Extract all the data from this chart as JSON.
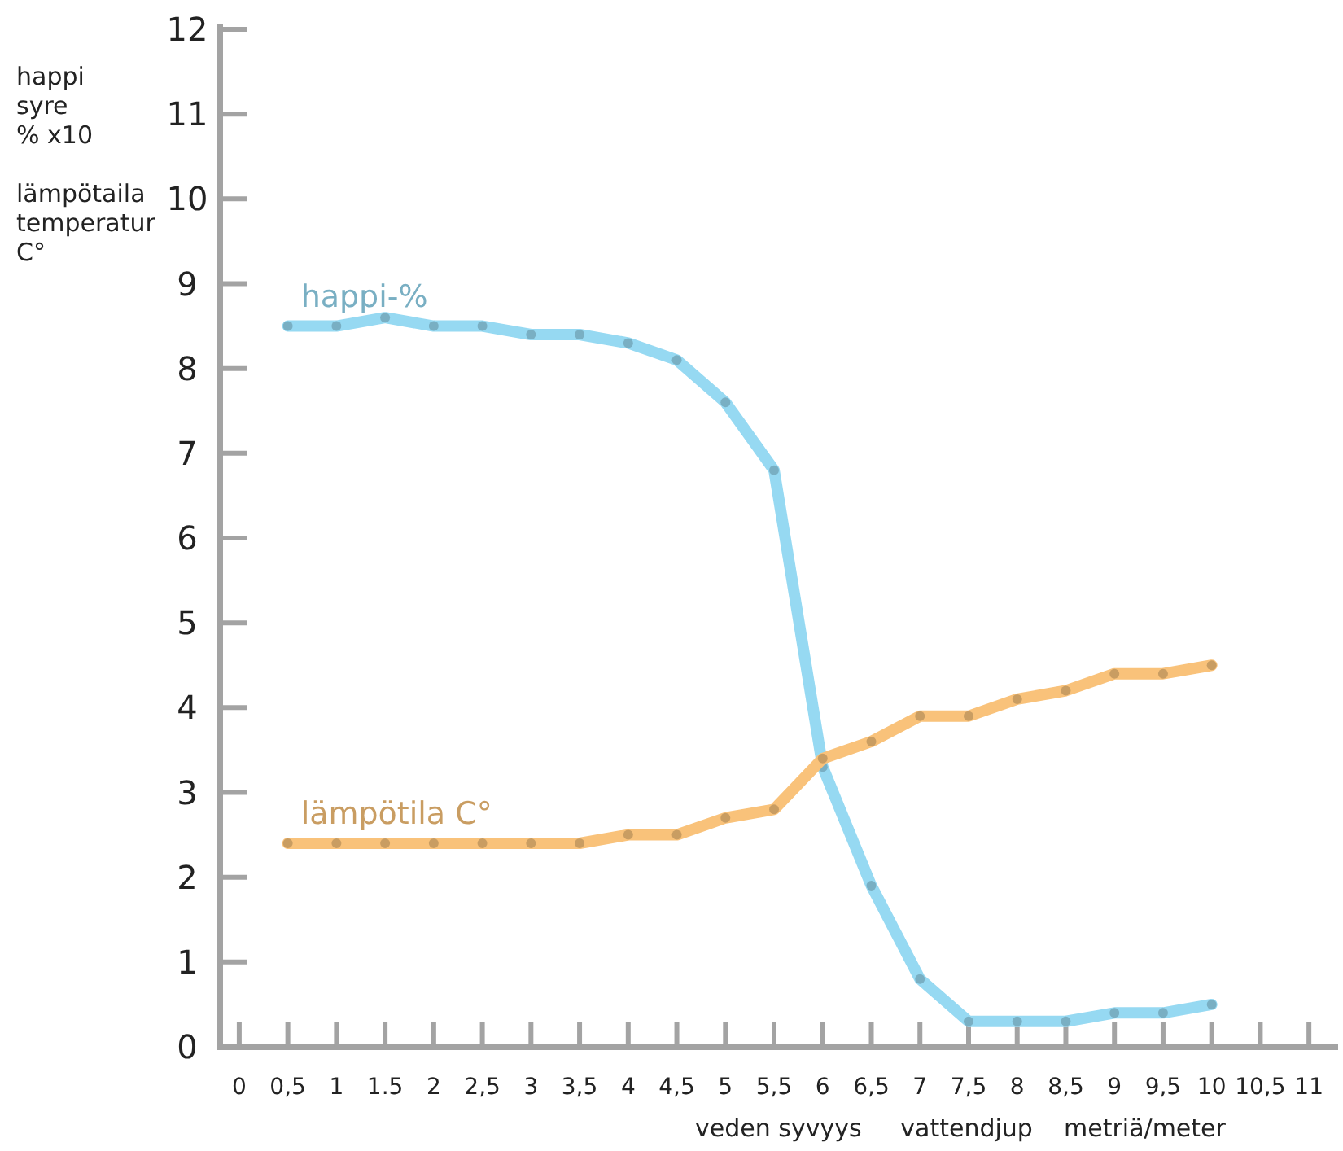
{
  "chart_data": {
    "type": "line",
    "ylabel": "happi\nsyre\n% x10\n\nlämpötaila\ntemperatur\nC°",
    "xlabel": "veden syvyys     vattendjup    metriä/meter",
    "x": [
      0.5,
      1,
      1.5,
      2,
      2.5,
      3,
      3.5,
      4,
      4.5,
      5,
      5.5,
      6,
      6.5,
      7,
      7.5,
      8,
      8.5,
      9,
      9.5,
      10
    ],
    "series": [
      {
        "name": "happi-%",
        "color": "#96d9f2",
        "values": [
          8.5,
          8.5,
          8.6,
          8.5,
          8.5,
          8.4,
          8.4,
          8.3,
          8.1,
          7.6,
          6.8,
          3.3,
          1.9,
          0.8,
          0.3,
          0.3,
          0.3,
          0.4,
          0.4,
          0.5
        ]
      },
      {
        "name": "lämpötila C°",
        "color": "#f9c27a",
        "values": [
          2.4,
          2.4,
          2.4,
          2.4,
          2.4,
          2.4,
          2.4,
          2.5,
          2.5,
          2.7,
          2.8,
          3.4,
          3.6,
          3.9,
          3.9,
          4.1,
          4.2,
          4.4,
          4.4,
          4.5
        ]
      }
    ],
    "xlim": [
      -0.2,
      11.3
    ],
    "ylim": [
      0,
      12
    ],
    "xticks": [
      0,
      {
        "value": 0.5,
        "label": "0,5"
      },
      1,
      1.5,
      2,
      {
        "value": 2.5,
        "label": "2,5"
      },
      3,
      {
        "value": 3.5,
        "label": "3,5"
      },
      4,
      {
        "value": 4.5,
        "label": "4,5"
      },
      5,
      {
        "value": 5.5,
        "label": "5,5"
      },
      6,
      {
        "value": 6.5,
        "label": "6,5"
      },
      7,
      {
        "value": 7.5,
        "label": "7,5"
      },
      8,
      {
        "value": 8.5,
        "label": "8,5"
      },
      9,
      {
        "value": 9.5,
        "label": "9,5"
      },
      10,
      {
        "value": 10.5,
        "label": "10,5"
      },
      11
    ],
    "yticks": [
      0,
      1,
      2,
      3,
      4,
      5,
      6,
      7,
      8,
      9,
      10,
      11,
      12
    ],
    "grid": false,
    "marker": "circle",
    "line_style": "solid"
  }
}
